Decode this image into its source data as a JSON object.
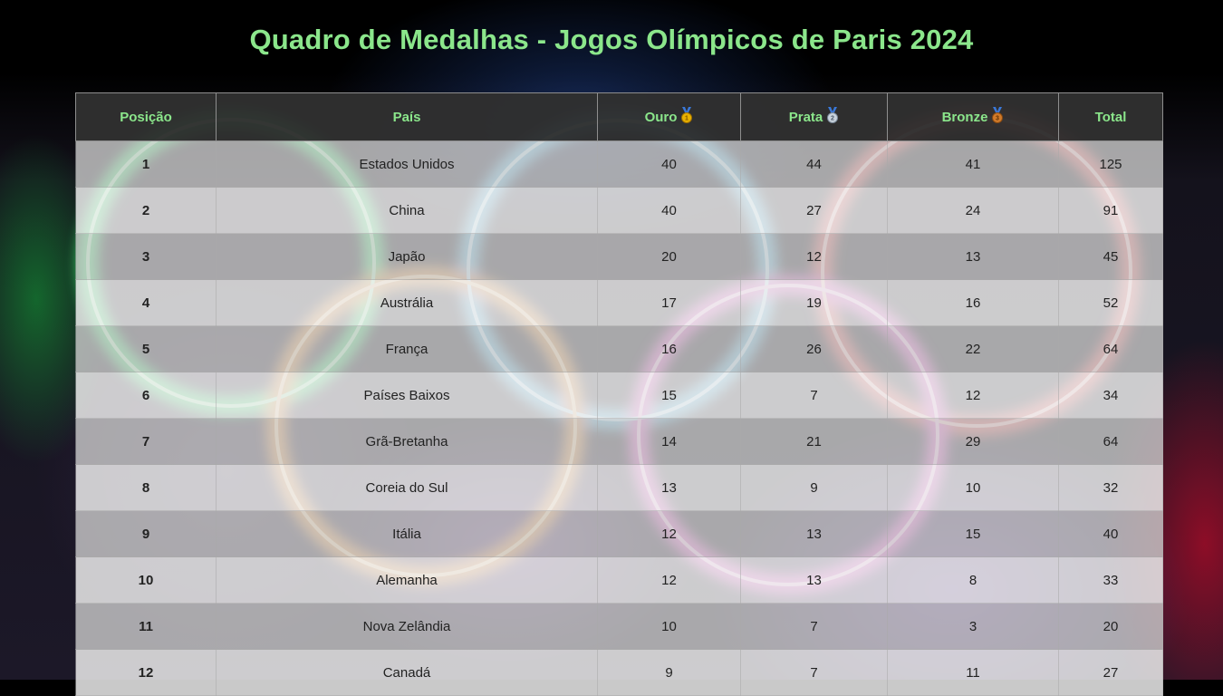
{
  "page": {
    "title": "Quadro de Medalhas - Jogos Olímpicos de Paris 2024"
  },
  "table": {
    "headers": {
      "position": "Posição",
      "country": "País",
      "gold": "Ouro",
      "silver": "Prata",
      "bronze": "Bronze",
      "total": "Total"
    },
    "medal_colors": {
      "gold": "#e8b100",
      "silver": "#a8b8c8",
      "bronze": "#d07a2a",
      "ribbon": "#3a78d8"
    },
    "rows": [
      {
        "position": "1",
        "country": "Estados Unidos",
        "gold": "40",
        "silver": "44",
        "bronze": "41",
        "total": "125"
      },
      {
        "position": "2",
        "country": "China",
        "gold": "40",
        "silver": "27",
        "bronze": "24",
        "total": "91"
      },
      {
        "position": "3",
        "country": "Japão",
        "gold": "20",
        "silver": "12",
        "bronze": "13",
        "total": "45"
      },
      {
        "position": "4",
        "country": "Austrália",
        "gold": "17",
        "silver": "19",
        "bronze": "16",
        "total": "52"
      },
      {
        "position": "5",
        "country": "França",
        "gold": "16",
        "silver": "26",
        "bronze": "22",
        "total": "64"
      },
      {
        "position": "6",
        "country": "Países Baixos",
        "gold": "15",
        "silver": "7",
        "bronze": "12",
        "total": "34"
      },
      {
        "position": "7",
        "country": "Grã-Bretanha",
        "gold": "14",
        "silver": "21",
        "bronze": "29",
        "total": "64"
      },
      {
        "position": "8",
        "country": "Coreia do Sul",
        "gold": "13",
        "silver": "9",
        "bronze": "10",
        "total": "32"
      },
      {
        "position": "9",
        "country": "Itália",
        "gold": "12",
        "silver": "13",
        "bronze": "15",
        "total": "40"
      },
      {
        "position": "10",
        "country": "Alemanha",
        "gold": "12",
        "silver": "13",
        "bronze": "8",
        "total": "33"
      },
      {
        "position": "11",
        "country": "Nova Zelândia",
        "gold": "10",
        "silver": "7",
        "bronze": "3",
        "total": "20"
      },
      {
        "position": "12",
        "country": "Canadá",
        "gold": "9",
        "silver": "7",
        "bronze": "11",
        "total": "27"
      }
    ]
  }
}
